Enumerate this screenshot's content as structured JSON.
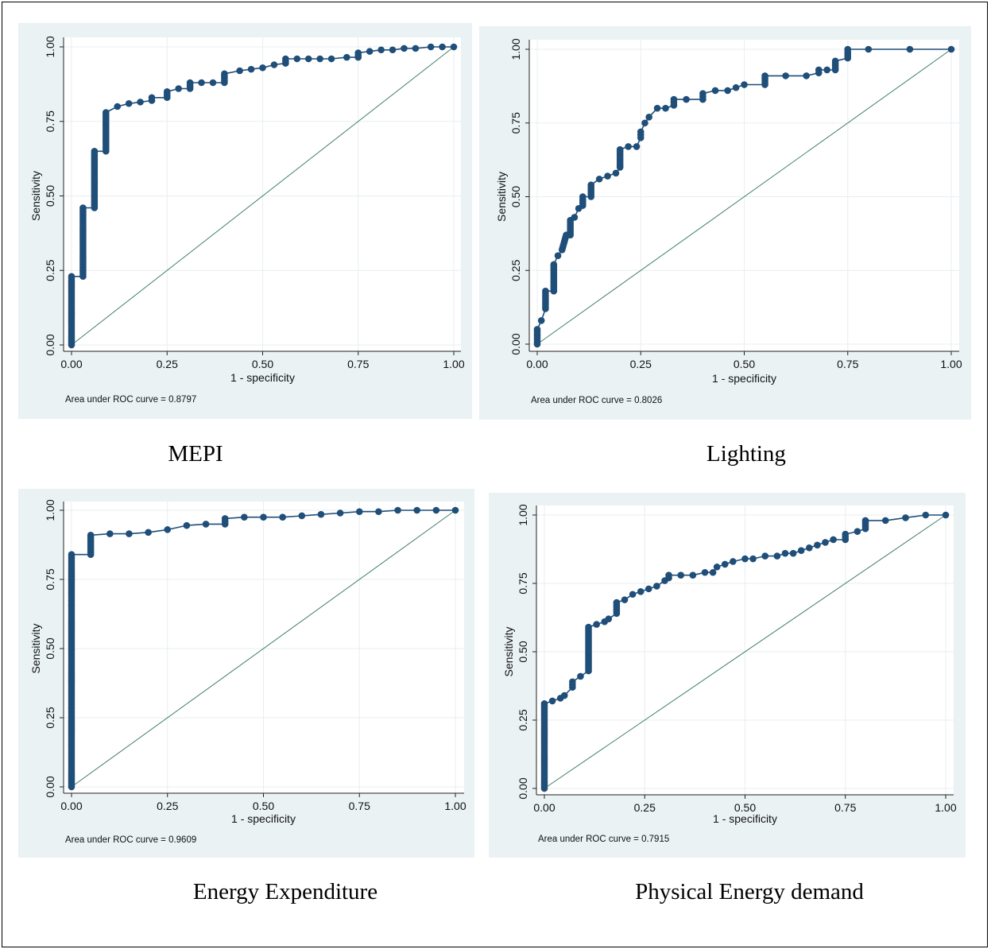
{
  "chart_data": [
    {
      "type": "line",
      "caption": "MEPI",
      "xlabel": "1 - specificity",
      "ylabel": "Sensitivity",
      "note": "Area under ROC curve = 0.8797",
      "xlim": [
        0,
        1
      ],
      "ylim": [
        0,
        1
      ],
      "xticks": [
        "0.00",
        "0.25",
        "0.50",
        "0.75",
        "1.00"
      ],
      "yticks": [
        "0.00",
        "0.25",
        "0.50",
        "0.75",
        "1.00"
      ],
      "grid": true,
      "reference_line": true,
      "series": [
        {
          "x": [
            0.0,
            0.0,
            0.03,
            0.03,
            0.06,
            0.06,
            0.09,
            0.09,
            0.12,
            0.15,
            0.18,
            0.21,
            0.21,
            0.25,
            0.25,
            0.28,
            0.31,
            0.31,
            0.34,
            0.37,
            0.4,
            0.4,
            0.44,
            0.47,
            0.5,
            0.53,
            0.56,
            0.56,
            0.59,
            0.62,
            0.65,
            0.68,
            0.72,
            0.75,
            0.75,
            0.78,
            0.81,
            0.84,
            0.87,
            0.9,
            0.94,
            0.97,
            1.0
          ],
          "y": [
            0.0,
            0.23,
            0.23,
            0.46,
            0.46,
            0.65,
            0.65,
            0.78,
            0.8,
            0.81,
            0.815,
            0.82,
            0.83,
            0.83,
            0.85,
            0.86,
            0.86,
            0.88,
            0.88,
            0.88,
            0.88,
            0.91,
            0.92,
            0.925,
            0.93,
            0.94,
            0.945,
            0.96,
            0.96,
            0.96,
            0.96,
            0.96,
            0.965,
            0.965,
            0.98,
            0.985,
            0.99,
            0.99,
            0.995,
            0.995,
            1.0,
            1.0,
            1.0
          ]
        }
      ]
    },
    {
      "type": "line",
      "caption": "Lighting",
      "xlabel": "1 - specificity",
      "ylabel": "Sensitivity",
      "note": "Area under ROC curve = 0.8026",
      "xlim": [
        0,
        1
      ],
      "ylim": [
        0,
        1
      ],
      "xticks": [
        "0.00",
        "0.25",
        "0.50",
        "0.75",
        "1.00"
      ],
      "yticks": [
        "0.00",
        "0.25",
        "0.50",
        "0.75",
        "1.00"
      ],
      "grid": true,
      "reference_line": true,
      "series": [
        {
          "x": [
            0.0,
            0.0,
            0.01,
            0.02,
            0.02,
            0.04,
            0.04,
            0.05,
            0.06,
            0.07,
            0.08,
            0.08,
            0.09,
            0.1,
            0.11,
            0.11,
            0.13,
            0.13,
            0.15,
            0.17,
            0.19,
            0.2,
            0.2,
            0.22,
            0.24,
            0.25,
            0.25,
            0.26,
            0.27,
            0.29,
            0.31,
            0.33,
            0.33,
            0.36,
            0.4,
            0.4,
            0.43,
            0.46,
            0.48,
            0.5,
            0.55,
            0.55,
            0.6,
            0.65,
            0.68,
            0.68,
            0.7,
            0.72,
            0.72,
            0.75,
            0.75,
            0.8,
            0.9,
            1.0
          ],
          "y": [
            0.0,
            0.05,
            0.08,
            0.12,
            0.18,
            0.18,
            0.27,
            0.3,
            0.32,
            0.37,
            0.37,
            0.42,
            0.43,
            0.46,
            0.47,
            0.5,
            0.5,
            0.54,
            0.56,
            0.57,
            0.58,
            0.6,
            0.66,
            0.67,
            0.67,
            0.7,
            0.72,
            0.75,
            0.77,
            0.8,
            0.8,
            0.81,
            0.83,
            0.83,
            0.83,
            0.85,
            0.86,
            0.86,
            0.87,
            0.88,
            0.88,
            0.91,
            0.91,
            0.91,
            0.92,
            0.93,
            0.93,
            0.93,
            0.96,
            0.97,
            1.0,
            1.0,
            1.0,
            1.0
          ]
        }
      ]
    },
    {
      "type": "line",
      "caption": "Energy Expenditure",
      "xlabel": "1 - specificity",
      "ylabel": "Sensitivity",
      "note": "Area under ROC curve = 0.9609",
      "xlim": [
        0,
        1
      ],
      "ylim": [
        0,
        1
      ],
      "xticks": [
        "0.00",
        "0.25",
        "0.50",
        "0.75",
        "1.00"
      ],
      "yticks": [
        "0.00",
        "0.25",
        "0.50",
        "0.75",
        "1.00"
      ],
      "grid": true,
      "reference_line": true,
      "series": [
        {
          "x": [
            0.0,
            0.0,
            0.05,
            0.05,
            0.1,
            0.15,
            0.2,
            0.25,
            0.3,
            0.35,
            0.4,
            0.4,
            0.45,
            0.5,
            0.55,
            0.6,
            0.65,
            0.7,
            0.75,
            0.8,
            0.85,
            0.9,
            0.95,
            1.0
          ],
          "y": [
            0.0,
            0.84,
            0.84,
            0.91,
            0.915,
            0.915,
            0.92,
            0.93,
            0.945,
            0.95,
            0.95,
            0.97,
            0.975,
            0.975,
            0.975,
            0.98,
            0.985,
            0.99,
            0.995,
            0.995,
            1.0,
            1.0,
            1.0,
            1.0
          ]
        }
      ]
    },
    {
      "type": "line",
      "caption": "Physical Energy demand",
      "xlabel": "1 - specificity",
      "ylabel": "Sensitivity",
      "note": "Area under ROC curve = 0.7915",
      "xlim": [
        0,
        1
      ],
      "ylim": [
        0,
        1
      ],
      "xticks": [
        "0.00",
        "0.25",
        "0.50",
        "0.75",
        "1.00"
      ],
      "yticks": [
        "0.00",
        "0.25",
        "0.50",
        "0.75",
        "1.00"
      ],
      "grid": true,
      "reference_line": true,
      "series": [
        {
          "x": [
            0.0,
            0.0,
            0.02,
            0.04,
            0.05,
            0.07,
            0.07,
            0.09,
            0.11,
            0.11,
            0.13,
            0.15,
            0.16,
            0.18,
            0.18,
            0.2,
            0.22,
            0.24,
            0.26,
            0.28,
            0.3,
            0.31,
            0.31,
            0.34,
            0.37,
            0.4,
            0.42,
            0.43,
            0.45,
            0.47,
            0.5,
            0.52,
            0.55,
            0.58,
            0.6,
            0.62,
            0.64,
            0.66,
            0.68,
            0.7,
            0.72,
            0.75,
            0.75,
            0.78,
            0.8,
            0.8,
            0.85,
            0.9,
            0.95,
            1.0
          ],
          "y": [
            0.0,
            0.31,
            0.32,
            0.33,
            0.34,
            0.37,
            0.39,
            0.41,
            0.43,
            0.59,
            0.6,
            0.61,
            0.62,
            0.64,
            0.68,
            0.69,
            0.71,
            0.72,
            0.73,
            0.74,
            0.76,
            0.77,
            0.78,
            0.78,
            0.78,
            0.79,
            0.79,
            0.81,
            0.82,
            0.83,
            0.84,
            0.84,
            0.85,
            0.85,
            0.86,
            0.86,
            0.87,
            0.88,
            0.89,
            0.9,
            0.91,
            0.91,
            0.93,
            0.94,
            0.95,
            0.98,
            0.98,
            0.99,
            1.0,
            1.0
          ]
        }
      ]
    }
  ]
}
